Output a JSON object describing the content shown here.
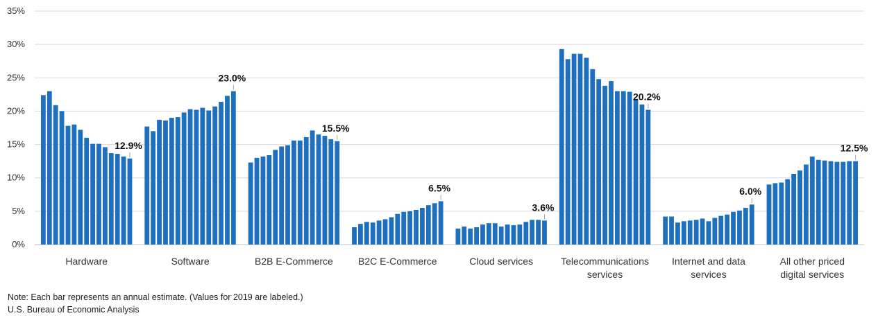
{
  "chart_data": {
    "type": "bar",
    "ylim": [
      0,
      35
    ],
    "y_ticks": [
      "0%",
      "5%",
      "10%",
      "15%",
      "20%",
      "25%",
      "30%",
      "35%"
    ],
    "grid": true,
    "bar_color": "#1f6fbf",
    "groups": [
      {
        "name": [
          "Hardware"
        ],
        "label_2019": "12.9%",
        "values": [
          22.4,
          23.0,
          20.9,
          20.0,
          17.8,
          18.0,
          17.2,
          16.0,
          15.1,
          15.1,
          14.6,
          13.7,
          13.6,
          13.2,
          12.9
        ]
      },
      {
        "name": [
          "Software"
        ],
        "label_2019": "23.0%",
        "values": [
          17.7,
          17.0,
          18.7,
          18.6,
          19.0,
          19.1,
          19.8,
          20.3,
          20.2,
          20.5,
          20.1,
          20.7,
          21.4,
          22.3,
          23.0
        ]
      },
      {
        "name": [
          "B2B E-Commerce"
        ],
        "label_2019": "15.5%",
        "values": [
          12.3,
          13.0,
          13.2,
          13.4,
          14.2,
          14.7,
          14.9,
          15.6,
          15.6,
          16.1,
          17.1,
          16.5,
          16.3,
          15.8,
          15.5
        ]
      },
      {
        "name": [
          "B2C E-Commerce"
        ],
        "label_2019": "6.5%",
        "values": [
          2.6,
          3.1,
          3.4,
          3.3,
          3.6,
          3.8,
          4.1,
          4.6,
          4.9,
          5.0,
          5.2,
          5.5,
          5.9,
          6.2,
          6.5
        ]
      },
      {
        "name": [
          "Cloud services"
        ],
        "label_2019": "3.6%",
        "values": [
          2.4,
          2.7,
          2.4,
          2.6,
          3.0,
          3.2,
          3.2,
          2.7,
          3.0,
          2.9,
          3.0,
          3.4,
          3.7,
          3.7,
          3.6
        ]
      },
      {
        "name": [
          "Telecommunications",
          "services"
        ],
        "label_2019": "20.2%",
        "values": [
          29.3,
          27.8,
          28.6,
          28.6,
          28.0,
          26.3,
          24.8,
          23.8,
          24.5,
          23.0,
          23.0,
          22.9,
          21.7,
          21.0,
          20.2
        ]
      },
      {
        "name": [
          "Internet and data",
          "services"
        ],
        "label_2019": "6.0%",
        "values": [
          4.2,
          4.2,
          3.3,
          3.5,
          3.6,
          3.7,
          3.9,
          3.5,
          4.0,
          4.3,
          4.5,
          4.9,
          5.1,
          5.5,
          6.0
        ]
      },
      {
        "name": [
          "All other priced",
          "digital services"
        ],
        "label_2019": "12.5%",
        "values": [
          9.0,
          9.2,
          9.3,
          9.8,
          10.6,
          11.1,
          12.0,
          13.2,
          12.7,
          12.6,
          12.5,
          12.4,
          12.4,
          12.5,
          12.5
        ]
      }
    ]
  },
  "notes": {
    "line1": "Note: Each bar represents an annual estimate. (Values for 2019 are labeled.)",
    "line2": "U.S. Bureau of Economic Analysis"
  }
}
